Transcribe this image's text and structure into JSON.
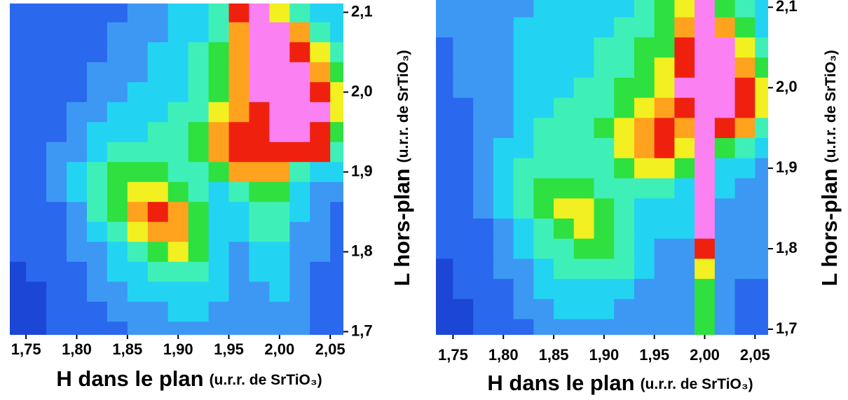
{
  "chart_data": [
    {
      "type": "heatmap",
      "x": [
        1.74,
        1.76,
        1.78,
        1.8,
        1.82,
        1.84,
        1.86,
        1.88,
        1.9,
        1.92,
        1.94,
        1.96,
        1.98,
        2.0,
        2.02,
        2.04,
        2.06
      ],
      "y": [
        2.1,
        2.075,
        2.05,
        2.025,
        2.0,
        1.975,
        1.95,
        1.925,
        1.9,
        1.875,
        1.85,
        1.825,
        1.8,
        1.775,
        1.75,
        1.725,
        1.7
      ],
      "values": [
        [
          1,
          1,
          1,
          1,
          1,
          1,
          2,
          2,
          3,
          3,
          4,
          8,
          9,
          6,
          4,
          3,
          3
        ],
        [
          1,
          1,
          1,
          1,
          1,
          2,
          2,
          2,
          3,
          3,
          4,
          7,
          9,
          9,
          7,
          4,
          3
        ],
        [
          1,
          1,
          1,
          1,
          1,
          2,
          2,
          3,
          3,
          4,
          5,
          7,
          9,
          9,
          8,
          6,
          4
        ],
        [
          1,
          1,
          1,
          1,
          2,
          2,
          2,
          3,
          3,
          4,
          5,
          7,
          9,
          9,
          9,
          7,
          5
        ],
        [
          1,
          1,
          1,
          1,
          2,
          2,
          3,
          3,
          3,
          4,
          5,
          7,
          9,
          9,
          9,
          8,
          6
        ],
        [
          1,
          1,
          1,
          2,
          2,
          3,
          3,
          3,
          4,
          4,
          6,
          7,
          8,
          9,
          9,
          9,
          6
        ],
        [
          1,
          1,
          1,
          2,
          3,
          3,
          3,
          4,
          4,
          5,
          7,
          8,
          8,
          9,
          9,
          8,
          5
        ],
        [
          1,
          1,
          2,
          2,
          3,
          4,
          4,
          4,
          4,
          5,
          7,
          8,
          8,
          8,
          8,
          8,
          4
        ],
        [
          1,
          1,
          2,
          3,
          4,
          5,
          5,
          5,
          4,
          4,
          5,
          7,
          7,
          7,
          4,
          3,
          3
        ],
        [
          1,
          1,
          2,
          3,
          4,
          5,
          6,
          6,
          5,
          4,
          3,
          4,
          5,
          5,
          3,
          2,
          2
        ],
        [
          1,
          1,
          1,
          2,
          4,
          5,
          7,
          8,
          7,
          5,
          3,
          3,
          4,
          4,
          3,
          2,
          1
        ],
        [
          1,
          1,
          1,
          2,
          3,
          4,
          6,
          7,
          7,
          5,
          3,
          3,
          4,
          4,
          2,
          2,
          1
        ],
        [
          1,
          1,
          1,
          2,
          2,
          3,
          4,
          5,
          6,
          5,
          3,
          2,
          3,
          3,
          2,
          2,
          1
        ],
        [
          0,
          1,
          1,
          1,
          2,
          3,
          3,
          4,
          4,
          4,
          3,
          2,
          3,
          3,
          2,
          1,
          1
        ],
        [
          0,
          0,
          1,
          1,
          2,
          2,
          3,
          3,
          3,
          3,
          3,
          2,
          2,
          3,
          2,
          1,
          1
        ],
        [
          0,
          0,
          1,
          1,
          1,
          2,
          2,
          2,
          3,
          3,
          2,
          2,
          2,
          2,
          2,
          1,
          1
        ],
        [
          0,
          0,
          1,
          1,
          1,
          1,
          2,
          2,
          2,
          2,
          2,
          2,
          2,
          2,
          2,
          1,
          1
        ]
      ],
      "colorscale": [
        "#1c46d6",
        "#2a68ee",
        "#3d98f4",
        "#22d4f2",
        "#3ef0b8",
        "#2ee040",
        "#f2f020",
        "#ffa21e",
        "#f0200e",
        "#fb80f2"
      ],
      "xlim": [
        1.734,
        2.063
      ],
      "ylim": [
        1.696,
        2.111
      ],
      "xticks": [
        {
          "value": 1.75,
          "label": "1,75"
        },
        {
          "value": 1.8,
          "label": "1,80"
        },
        {
          "value": 1.85,
          "label": "1,85"
        },
        {
          "value": 1.9,
          "label": "1,90"
        },
        {
          "value": 1.95,
          "label": "1,95"
        },
        {
          "value": 2.0,
          "label": "2,00"
        },
        {
          "value": 2.05,
          "label": "2,05"
        }
      ],
      "yticks": [
        {
          "value": 1.7,
          "label": "1,7"
        },
        {
          "value": 1.8,
          "label": "1,8"
        },
        {
          "value": 1.9,
          "label": "1,9"
        },
        {
          "value": 2.0,
          "label": "2,0"
        },
        {
          "value": 2.1,
          "label": "2,1"
        }
      ],
      "xlabel": "H dans le plan",
      "xlabel_unit": "(u.r.r. de SrTiO₃)",
      "ylabel": "L hors-plan",
      "ylabel_unit": "(u.r.r. de SrTiO₃)"
    },
    {
      "type": "heatmap",
      "x": [
        1.74,
        1.76,
        1.78,
        1.8,
        1.82,
        1.84,
        1.86,
        1.88,
        1.9,
        1.92,
        1.94,
        1.96,
        1.98,
        2.0,
        2.02,
        2.04,
        2.06
      ],
      "y": [
        2.1,
        2.075,
        2.05,
        2.025,
        2.0,
        1.975,
        1.95,
        1.925,
        1.9,
        1.875,
        1.85,
        1.825,
        1.8,
        1.775,
        1.75,
        1.725,
        1.7
      ],
      "values": [
        [
          2,
          2,
          2,
          2,
          2,
          3,
          3,
          3,
          3,
          3,
          4,
          5,
          6,
          9,
          5,
          4,
          3
        ],
        [
          2,
          2,
          2,
          2,
          3,
          3,
          3,
          3,
          3,
          4,
          4,
          5,
          7,
          9,
          7,
          5,
          3
        ],
        [
          1,
          2,
          2,
          2,
          3,
          3,
          3,
          3,
          4,
          4,
          5,
          5,
          8,
          9,
          9,
          6,
          4
        ],
        [
          1,
          2,
          2,
          2,
          3,
          3,
          3,
          3,
          4,
          4,
          5,
          6,
          8,
          9,
          9,
          7,
          5
        ],
        [
          1,
          2,
          2,
          2,
          3,
          3,
          3,
          4,
          4,
          5,
          5,
          6,
          9,
          9,
          9,
          8,
          6
        ],
        [
          1,
          1,
          2,
          2,
          3,
          3,
          4,
          4,
          4,
          5,
          6,
          7,
          8,
          9,
          9,
          8,
          6
        ],
        [
          1,
          1,
          2,
          2,
          3,
          4,
          4,
          4,
          5,
          6,
          7,
          8,
          7,
          9,
          8,
          7,
          4
        ],
        [
          1,
          1,
          2,
          3,
          3,
          4,
          4,
          4,
          4,
          6,
          7,
          8,
          6,
          9,
          5,
          4,
          3
        ],
        [
          1,
          1,
          2,
          3,
          4,
          4,
          4,
          4,
          4,
          5,
          6,
          6,
          5,
          9,
          3,
          3,
          2
        ],
        [
          1,
          1,
          2,
          3,
          4,
          5,
          5,
          5,
          4,
          4,
          4,
          4,
          3,
          9,
          3,
          2,
          2
        ],
        [
          1,
          1,
          2,
          3,
          4,
          5,
          6,
          6,
          5,
          4,
          3,
          3,
          3,
          9,
          2,
          2,
          2
        ],
        [
          1,
          1,
          1,
          2,
          3,
          4,
          5,
          6,
          5,
          4,
          3,
          3,
          3,
          9,
          2,
          2,
          2
        ],
        [
          1,
          1,
          1,
          2,
          3,
          4,
          4,
          5,
          5,
          4,
          3,
          2,
          2,
          8,
          2,
          2,
          2
        ],
        [
          0,
          1,
          1,
          2,
          2,
          3,
          4,
          4,
          4,
          4,
          3,
          2,
          2,
          6,
          2,
          2,
          2
        ],
        [
          0,
          1,
          1,
          1,
          2,
          3,
          3,
          3,
          3,
          3,
          2,
          2,
          2,
          5,
          2,
          1,
          1
        ],
        [
          0,
          0,
          1,
          1,
          2,
          2,
          3,
          3,
          3,
          2,
          2,
          2,
          2,
          5,
          2,
          1,
          1
        ],
        [
          0,
          0,
          1,
          1,
          1,
          2,
          2,
          2,
          2,
          2,
          2,
          2,
          2,
          5,
          2,
          1,
          1
        ]
      ],
      "colorscale": [
        "#1c46d6",
        "#2a68ee",
        "#3d98f4",
        "#22d4f2",
        "#3ef0b8",
        "#2ee040",
        "#f2f020",
        "#ffa21e",
        "#f0200e",
        "#fb80f2"
      ],
      "xlim": [
        1.733,
        2.063
      ],
      "ylim": [
        1.693,
        2.109
      ],
      "xticks": [
        {
          "value": 1.75,
          "label": "1,75"
        },
        {
          "value": 1.8,
          "label": "1,80"
        },
        {
          "value": 1.85,
          "label": "1,85"
        },
        {
          "value": 1.9,
          "label": "1,90"
        },
        {
          "value": 1.95,
          "label": "1,95"
        },
        {
          "value": 2.0,
          "label": "2,00"
        },
        {
          "value": 2.05,
          "label": "2,05"
        }
      ],
      "yticks": [
        {
          "value": 1.7,
          "label": "1,7"
        },
        {
          "value": 1.8,
          "label": "1,8"
        },
        {
          "value": 1.9,
          "label": "1,9"
        },
        {
          "value": 2.0,
          "label": "2,0"
        },
        {
          "value": 2.1,
          "label": "2,1"
        }
      ],
      "xlabel": "H dans le plan",
      "xlabel_unit": "(u.r.r. de SrTiO₃)",
      "ylabel": "L hors-plan",
      "ylabel_unit": "(u.r.r. de SrTiO₃)"
    }
  ]
}
